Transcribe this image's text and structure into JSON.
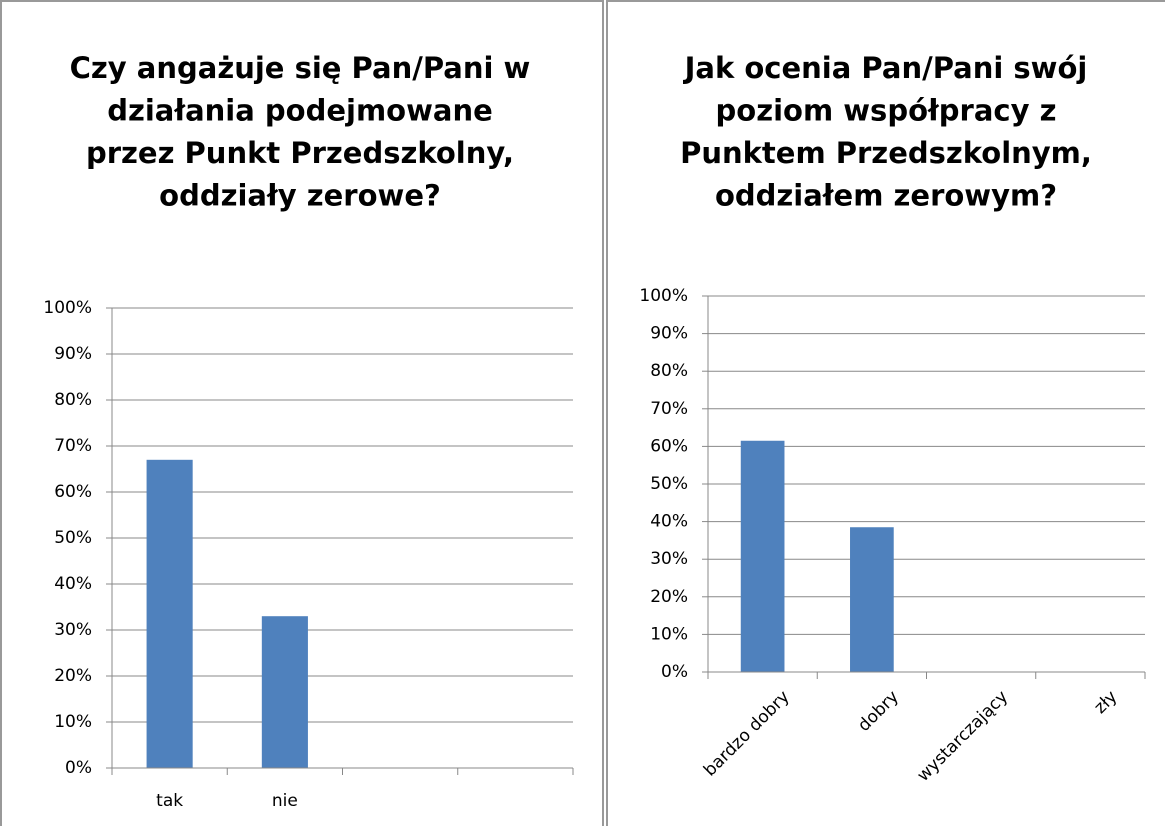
{
  "chart_data": [
    {
      "type": "bar",
      "title": [
        "Czy angażuje się Pan/Pani w",
        "działania podejmowane",
        "przez Punkt Przedszkolny,",
        "oddziały zerowe?"
      ],
      "categories": [
        "tak",
        "nie",
        null,
        null
      ],
      "values": [
        67,
        33,
        null,
        null
      ],
      "color": "#4f81bd",
      "ylim": [
        0,
        100
      ],
      "yticks": [
        {
          "value": 0,
          "label": "0%"
        },
        {
          "value": 10,
          "label": "10%"
        },
        {
          "value": 20,
          "label": "20%"
        },
        {
          "value": 30,
          "label": "30%"
        },
        {
          "value": 40,
          "label": "40%"
        },
        {
          "value": 50,
          "label": "50%"
        },
        {
          "value": 60,
          "label": "60%"
        },
        {
          "value": 70,
          "label": "70%"
        },
        {
          "value": 80,
          "label": "80%"
        },
        {
          "value": 90,
          "label": "90%"
        },
        {
          "value": 100,
          "label": "100%"
        }
      ],
      "grid": true
    },
    {
      "type": "bar",
      "title": [
        "Jak ocenia Pan/Pani swój",
        "poziom współpracy z",
        "Punktem Przedszkolnym,",
        "oddziałem zerowym?"
      ],
      "categories": [
        "bardzo dobry",
        "dobry",
        "wystarczający",
        "zły"
      ],
      "values": [
        61.5,
        38.5,
        0,
        0
      ],
      "color": "#4f81bd",
      "ylim": [
        0,
        100
      ],
      "yticks": [
        {
          "value": 0,
          "label": "0%"
        },
        {
          "value": 10,
          "label": "10%"
        },
        {
          "value": 20,
          "label": "20%"
        },
        {
          "value": 30,
          "label": "30%"
        },
        {
          "value": 40,
          "label": "40%"
        },
        {
          "value": 50,
          "label": "50%"
        },
        {
          "value": 60,
          "label": "60%"
        },
        {
          "value": 70,
          "label": "70%"
        },
        {
          "value": 80,
          "label": "80%"
        },
        {
          "value": 90,
          "label": "90%"
        },
        {
          "value": 100,
          "label": "100%"
        }
      ],
      "grid": true
    }
  ]
}
